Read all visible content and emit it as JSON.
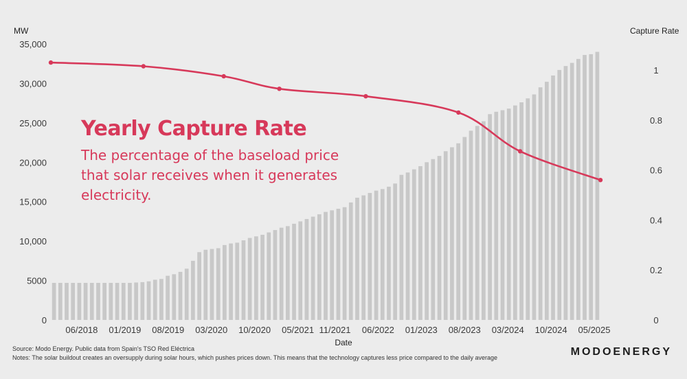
{
  "chart_data": {
    "type": "bar+line",
    "title": "Yearly Capture Rate",
    "subtitle": "The percentage of the baseload price that solar receives when it generates electricity.",
    "xlabel": "Date",
    "ylabel_left": "MW",
    "ylabel_right": "Capture Rate",
    "ylim_left": [
      0,
      35000
    ],
    "ylim_right": [
      0,
      1.1
    ],
    "yticks_left": [
      "0",
      "5000",
      "10,000",
      "15,000",
      "20,000",
      "25,000",
      "30,000",
      "35,000"
    ],
    "yticks_right": [
      "0",
      "0.2",
      "0.4",
      "0.6",
      "0.8",
      "1"
    ],
    "xticks": [
      "06/2018",
      "01/2019",
      "08/2019",
      "03/2020",
      "10/2020",
      "05/2021",
      "11/2021",
      "06/2022",
      "01/2023",
      "08/2023",
      "03/2024",
      "10/2024",
      "05/2025"
    ],
    "x_range": [
      "01/2018",
      "06/2025"
    ],
    "bars": {
      "unit": "MW",
      "values": [
        4700,
        4700,
        4700,
        4700,
        4700,
        4700,
        4700,
        4700,
        4700,
        4700,
        4700,
        4700,
        4700,
        4750,
        4800,
        4900,
        5100,
        5200,
        5600,
        5800,
        6100,
        6500,
        7500,
        8600,
        8900,
        9000,
        9100,
        9500,
        9700,
        9800,
        10100,
        10400,
        10600,
        10800,
        11100,
        11400,
        11700,
        11900,
        12200,
        12500,
        12800,
        13100,
        13400,
        13700,
        13900,
        14100,
        14300,
        14900,
        15500,
        15800,
        16100,
        16400,
        16600,
        16900,
        17300,
        18400,
        18700,
        19100,
        19500,
        20000,
        20400,
        20800,
        21400,
        21900,
        22400,
        23200,
        24000,
        24600,
        25200,
        26100,
        26400,
        26600,
        26800,
        27200,
        27600,
        28100,
        28600,
        29500,
        30200,
        31000,
        31700,
        32200,
        32600,
        33100,
        33600,
        33700,
        34000
      ]
    },
    "line": {
      "unit": "capture rate",
      "points": [
        {
          "x": "01/2018",
          "y": 1.03
        },
        {
          "x": "04/2019",
          "y": 1.015
        },
        {
          "x": "05/2020",
          "y": 0.975
        },
        {
          "x": "02/2021",
          "y": 0.925
        },
        {
          "x": "04/2022",
          "y": 0.895
        },
        {
          "x": "07/2023",
          "y": 0.83
        },
        {
          "x": "05/2024",
          "y": 0.675
        },
        {
          "x": "06/2025",
          "y": 0.56
        }
      ]
    },
    "colors": {
      "bars": "#c8c8c8",
      "line": "#d7395a",
      "background": "#ececec"
    },
    "grid": false,
    "legend": "none"
  },
  "source_text": "Source: Modo Energy. Public data from Spain's TSO Red Eléctrica",
  "notes_text": "Notes: The solar buildout creates an oversupply during solar hours, which pushes prices down. This means that the technology captures less price compared to the daily average",
  "brand": "MODOENERGY"
}
